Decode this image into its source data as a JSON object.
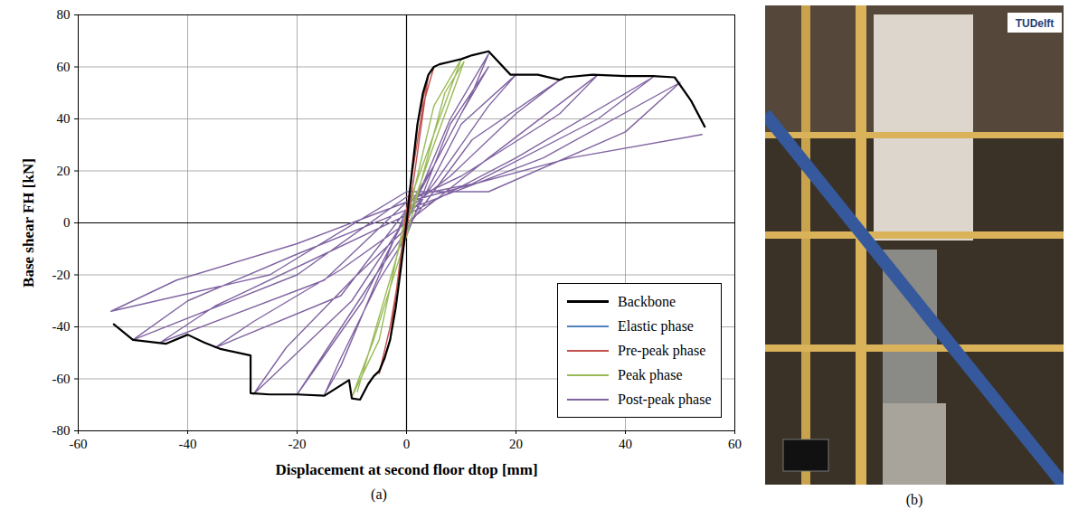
{
  "chart_data": {
    "type": "line",
    "x_label": "Displacement at second floor dtop [mm]",
    "y_label": "Base shear FH [kN]",
    "xlim": [
      -60,
      60
    ],
    "xticks": [
      -60,
      -40,
      -20,
      0,
      20,
      40,
      60
    ],
    "ylim": [
      -80,
      80
    ],
    "yticks": [
      -80,
      -60,
      -40,
      -20,
      0,
      20,
      40,
      60,
      80
    ],
    "grid": true,
    "legend": "lower right",
    "panel_label": "(a)",
    "series": [
      {
        "name": "Backbone",
        "color": "#000000",
        "x": [
          -53.5,
          -50,
          -44,
          -40,
          -37,
          -34,
          -28.5,
          -28.5,
          -25,
          -20,
          -15,
          -10.5,
          -10,
          -8.5,
          -7,
          -6,
          -5,
          -4,
          -3,
          -2,
          -1,
          0,
          1,
          2,
          3,
          4,
          5,
          6,
          8,
          10,
          12,
          15,
          19,
          24,
          28,
          29,
          34,
          40,
          45,
          49,
          52,
          54.5
        ],
        "values": [
          -39,
          -45,
          -46.5,
          -43,
          -46,
          -48.5,
          -51,
          -65.5,
          -66,
          -66,
          -66.5,
          -60.5,
          -67.5,
          -68,
          -62,
          -59,
          -57,
          -52,
          -45,
          -33,
          -17,
          0,
          20,
          38,
          50,
          57,
          60,
          61,
          62,
          63,
          64.5,
          66,
          57,
          57,
          55,
          56,
          57,
          56.5,
          56.5,
          56,
          47,
          37
        ]
      },
      {
        "name": "Elastic phase",
        "color": "#4f81bd",
        "x": [
          -1,
          0,
          1
        ],
        "values": [
          -16,
          0,
          18
        ]
      },
      {
        "name": "Pre-peak phase",
        "color": "#c0504d",
        "x": [
          0,
          2,
          4,
          5,
          3,
          0,
          -3,
          -5,
          -3,
          0,
          4
        ],
        "values": [
          0,
          38,
          57,
          60,
          45,
          5,
          -45,
          -58,
          -40,
          -3,
          57
        ]
      },
      {
        "name": "Peak phase",
        "color": "#9bbb59",
        "x": [
          0,
          5,
          10,
          6,
          0,
          -5,
          -10,
          -6,
          0,
          7,
          10.5,
          5,
          0,
          -9
        ],
        "values": [
          0,
          45,
          63,
          40,
          5,
          -45,
          -67,
          -45,
          -5,
          50,
          62,
          30,
          0,
          -65
        ]
      },
      {
        "name": "Post-peak phase",
        "color": "#8064a2",
        "x": [
          0,
          8,
          15,
          12,
          5,
          0,
          -5,
          -12,
          -15,
          -12,
          -5,
          0,
          8,
          15,
          10,
          3,
          0,
          -8,
          -20,
          -15,
          -5,
          0,
          10,
          20,
          15,
          5,
          0,
          -10,
          -28,
          -22,
          -10,
          0,
          12,
          28,
          20,
          8,
          0,
          -12,
          -35,
          -28,
          -12,
          0,
          15,
          35,
          28,
          10,
          0,
          -15,
          -45,
          -35,
          -15,
          0,
          20,
          45,
          35,
          12,
          0,
          -20,
          -50,
          -40,
          -20,
          0,
          25,
          50,
          40,
          15,
          0,
          -25,
          -54,
          -42,
          -20,
          0,
          30,
          54
        ],
        "values": [
          0,
          40,
          65,
          50,
          22,
          5,
          -20,
          -55,
          -66,
          -52,
          -22,
          -5,
          38,
          60,
          42,
          14,
          3,
          -30,
          -66,
          -50,
          -18,
          -3,
          38,
          57,
          45,
          15,
          2,
          -30,
          -66,
          -48,
          -22,
          -2,
          32,
          55,
          42,
          18,
          5,
          -28,
          -48,
          -38,
          -18,
          0,
          25,
          57,
          42,
          18,
          8,
          -22,
          -46,
          -32,
          -12,
          3,
          25,
          56,
          40,
          15,
          10,
          -20,
          -45,
          -30,
          -12,
          5,
          25,
          54,
          35,
          12,
          12,
          -20,
          -34,
          -22,
          -8,
          8,
          25,
          34
        ]
      }
    ]
  },
  "photo": {
    "panel_label": "(b)",
    "text": "TUDelft"
  }
}
